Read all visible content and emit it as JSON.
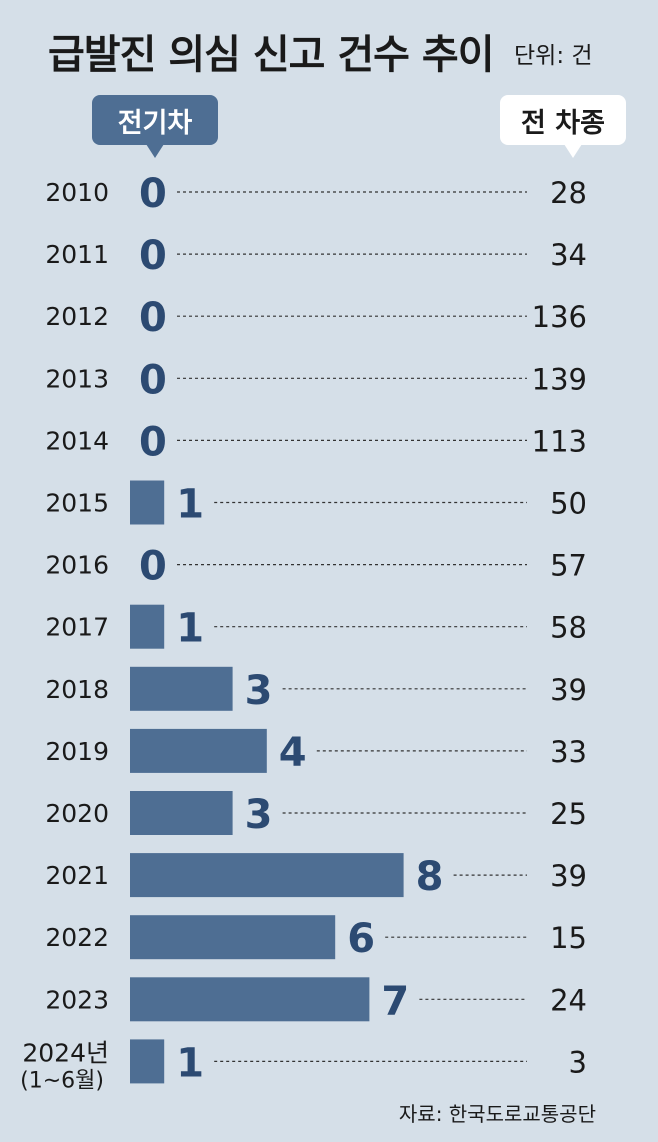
{
  "header": {
    "title": "급발진 의심 신고 건수 추이",
    "unit": "단위: 건"
  },
  "legend": {
    "ev_label": "전기차",
    "all_label": "전 차종"
  },
  "source": "자료: 한국도로교통공단",
  "colors": {
    "background": "#d5dfe8",
    "bar": "#4e6e93",
    "ev_value": "#2c4a72",
    "text": "#1a1a1a"
  },
  "chart_data": {
    "type": "bar",
    "orientation": "horizontal",
    "categories": [
      "2010",
      "2011",
      "2012",
      "2013",
      "2014",
      "2015",
      "2016",
      "2017",
      "2018",
      "2019",
      "2020",
      "2021",
      "2022",
      "2023",
      "2024년"
    ],
    "category_notes": [
      "",
      "",
      "",
      "",
      "",
      "",
      "",
      "",
      "",
      "",
      "",
      "",
      "",
      "",
      "(1~6월)"
    ],
    "series": [
      {
        "name": "전기차",
        "values": [
          0,
          0,
          0,
          0,
          0,
          1,
          0,
          1,
          3,
          4,
          3,
          8,
          6,
          7,
          1
        ]
      },
      {
        "name": "전 차종",
        "values": [
          28,
          34,
          136,
          139,
          113,
          50,
          57,
          58,
          39,
          33,
          25,
          39,
          15,
          24,
          3
        ]
      }
    ],
    "unit": "건"
  }
}
